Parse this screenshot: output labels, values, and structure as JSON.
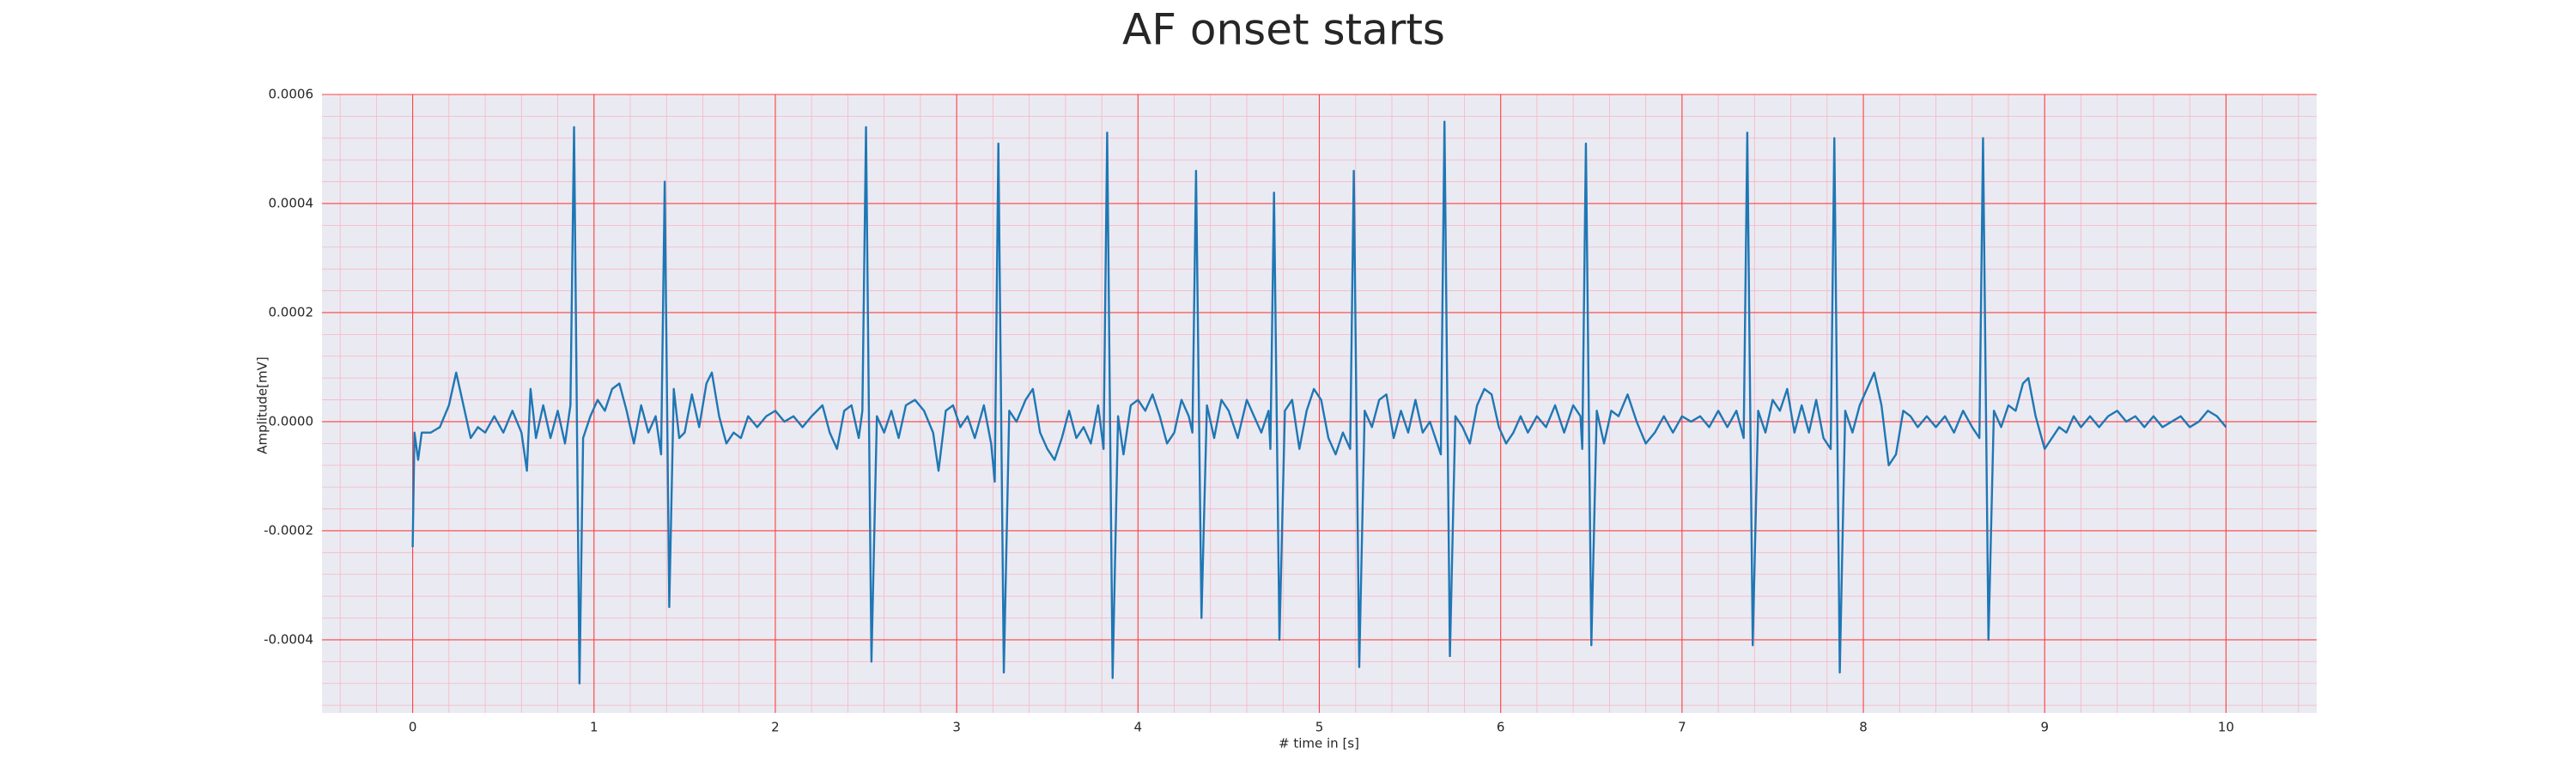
{
  "chart_data": {
    "type": "line",
    "title": "AF onset starts",
    "x_label": "# time in [s]",
    "y_label": "Amplitude[mV]",
    "color": "#1f77b4",
    "background": "#eaeaf2",
    "grid": true,
    "grid_color": "#ff4040",
    "minor_grid": true,
    "minor_grid_color": "#f7b6c2",
    "xlim": [
      -0.5,
      10.5
    ],
    "ylim": [
      -0.000534,
      0.0006
    ],
    "xticks": [
      0,
      1,
      2,
      3,
      4,
      5,
      6,
      7,
      8,
      9,
      10
    ],
    "yticks": [
      -0.0004,
      -0.0002,
      {
        "value": 0,
        "label": "0.0000"
      },
      0.0002,
      0.0004,
      0.0006
    ],
    "x": [
      0,
      0.01,
      0.03,
      0.05,
      0.1,
      0.15,
      0.2,
      0.24,
      0.28,
      0.32,
      0.36,
      0.4,
      0.45,
      0.5,
      0.55,
      0.6,
      0.63,
      0.65,
      0.68,
      0.72,
      0.76,
      0.8,
      0.84,
      0.87,
      0.89,
      0.92,
      0.94,
      0.98,
      1.02,
      1.06,
      1.1,
      1.14,
      1.18,
      1.22,
      1.26,
      1.3,
      1.34,
      1.37,
      1.39,
      1.415,
      1.44,
      1.47,
      1.5,
      1.54,
      1.58,
      1.62,
      1.65,
      1.69,
      1.73,
      1.77,
      1.81,
      1.85,
      1.9,
      1.95,
      2.0,
      2.05,
      2.1,
      2.15,
      2.2,
      2.26,
      2.3,
      2.34,
      2.38,
      2.42,
      2.46,
      2.48,
      2.5,
      2.53,
      2.56,
      2.6,
      2.64,
      2.68,
      2.72,
      2.77,
      2.82,
      2.87,
      2.9,
      2.94,
      2.98,
      3.02,
      3.06,
      3.1,
      3.15,
      3.19,
      3.21,
      3.23,
      3.26,
      3.29,
      3.33,
      3.38,
      3.42,
      3.46,
      3.5,
      3.54,
      3.58,
      3.62,
      3.66,
      3.7,
      3.74,
      3.78,
      3.81,
      3.83,
      3.86,
      3.89,
      3.92,
      3.96,
      4.0,
      4.04,
      4.08,
      4.12,
      4.16,
      4.2,
      4.24,
      4.28,
      4.3,
      4.32,
      4.35,
      4.38,
      4.42,
      4.46,
      4.5,
      4.55,
      4.6,
      4.64,
      4.68,
      4.72,
      4.73,
      4.75,
      4.78,
      4.81,
      4.85,
      4.89,
      4.93,
      4.97,
      5.01,
      5.05,
      5.09,
      5.13,
      5.17,
      5.19,
      5.22,
      5.25,
      5.29,
      5.33,
      5.37,
      5.41,
      5.45,
      5.49,
      5.53,
      5.57,
      5.61,
      5.65,
      5.67,
      5.69,
      5.72,
      5.75,
      5.79,
      5.83,
      5.87,
      5.91,
      5.95,
      5.99,
      6.03,
      6.07,
      6.11,
      6.15,
      6.2,
      6.25,
      6.3,
      6.35,
      6.4,
      6.44,
      6.45,
      6.47,
      6.5,
      6.53,
      6.57,
      6.61,
      6.65,
      6.7,
      6.75,
      6.8,
      6.85,
      6.9,
      6.95,
      7.0,
      7.05,
      7.1,
      7.15,
      7.2,
      7.25,
      7.3,
      7.34,
      7.36,
      7.39,
      7.42,
      7.46,
      7.5,
      7.54,
      7.58,
      7.62,
      7.66,
      7.7,
      7.74,
      7.78,
      7.82,
      7.84,
      7.87,
      7.9,
      7.94,
      7.98,
      8.02,
      8.06,
      8.1,
      8.14,
      8.18,
      8.22,
      8.26,
      8.3,
      8.35,
      8.4,
      8.45,
      8.5,
      8.55,
      8.6,
      8.64,
      8.66,
      8.69,
      8.72,
      8.76,
      8.8,
      8.84,
      8.88,
      8.91,
      8.95,
      9.0,
      9.04,
      9.08,
      9.12,
      9.16,
      9.2,
      9.25,
      9.3,
      9.35,
      9.4,
      9.45,
      9.5,
      9.55,
      9.6,
      9.65,
      9.7,
      9.75,
      9.8,
      9.85,
      9.9,
      9.95,
      10.0
    ],
    "values": [
      -0.00023,
      -2e-05,
      -7e-05,
      -2e-05,
      -2e-05,
      -1e-05,
      3e-05,
      9e-05,
      3e-05,
      -3e-05,
      -1e-05,
      -2e-05,
      1e-05,
      -2e-05,
      2e-05,
      -2e-05,
      -9e-05,
      6e-05,
      -3e-05,
      3e-05,
      -3e-05,
      2e-05,
      -4e-05,
      3e-05,
      0.00054,
      -0.00048,
      -3e-05,
      1e-05,
      4e-05,
      2e-05,
      6e-05,
      7e-05,
      2e-05,
      -4e-05,
      3e-05,
      -2e-05,
      1e-05,
      -6e-05,
      0.00044,
      -0.00034,
      6e-05,
      -3e-05,
      -2e-05,
      5e-05,
      -1e-05,
      7e-05,
      9e-05,
      1e-05,
      -4e-05,
      -2e-05,
      -3e-05,
      1e-05,
      -1e-05,
      1e-05,
      2e-05,
      0,
      1e-05,
      -1e-05,
      1e-05,
      3e-05,
      -2e-05,
      -5e-05,
      2e-05,
      3e-05,
      -3e-05,
      2e-05,
      0.00054,
      -0.00044,
      1e-05,
      -2e-05,
      2e-05,
      -3e-05,
      3e-05,
      4e-05,
      2e-05,
      -2e-05,
      -9e-05,
      2e-05,
      3e-05,
      -1e-05,
      1e-05,
      -3e-05,
      3e-05,
      -4e-05,
      -0.00011,
      0.00051,
      -0.00046,
      2e-05,
      0,
      4e-05,
      6e-05,
      -2e-05,
      -5e-05,
      -7e-05,
      -3e-05,
      2e-05,
      -3e-05,
      -1e-05,
      -4e-05,
      3e-05,
      -5e-05,
      0.00053,
      -0.00047,
      1e-05,
      -6e-05,
      3e-05,
      4e-05,
      2e-05,
      5e-05,
      1e-05,
      -4e-05,
      -2e-05,
      4e-05,
      1e-05,
      -2e-05,
      0.00046,
      -0.00036,
      3e-05,
      -3e-05,
      4e-05,
      2e-05,
      -3e-05,
      4e-05,
      1e-05,
      -2e-05,
      2e-05,
      -5e-05,
      0.00042,
      -0.0004,
      2e-05,
      4e-05,
      -5e-05,
      2e-05,
      6e-05,
      4e-05,
      -3e-05,
      -6e-05,
      -2e-05,
      -5e-05,
      0.00046,
      -0.00045,
      2e-05,
      -1e-05,
      4e-05,
      5e-05,
      -3e-05,
      2e-05,
      -2e-05,
      4e-05,
      -2e-05,
      0,
      -4e-05,
      -6e-05,
      0.00055,
      -0.00043,
      1e-05,
      -1e-05,
      -4e-05,
      3e-05,
      6e-05,
      5e-05,
      -1e-05,
      -4e-05,
      -2e-05,
      1e-05,
      -2e-05,
      1e-05,
      -1e-05,
      3e-05,
      -2e-05,
      3e-05,
      1e-05,
      -5e-05,
      0.00051,
      -0.00041,
      2e-05,
      -4e-05,
      2e-05,
      1e-05,
      5e-05,
      0,
      -4e-05,
      -2e-05,
      1e-05,
      -2e-05,
      1e-05,
      0,
      1e-05,
      -1e-05,
      2e-05,
      -1e-05,
      2e-05,
      -3e-05,
      0.00053,
      -0.00041,
      2e-05,
      -2e-05,
      4e-05,
      2e-05,
      6e-05,
      -2e-05,
      3e-05,
      -2e-05,
      4e-05,
      -3e-05,
      -5e-05,
      0.00052,
      -0.00046,
      2e-05,
      -2e-05,
      3e-05,
      6e-05,
      9e-05,
      3e-05,
      -8e-05,
      -6e-05,
      2e-05,
      1e-05,
      -1e-05,
      1e-05,
      -1e-05,
      1e-05,
      -2e-05,
      2e-05,
      -1e-05,
      -3e-05,
      0.00052,
      -0.0004,
      2e-05,
      -1e-05,
      3e-05,
      2e-05,
      7e-05,
      8e-05,
      1e-05,
      -5e-05,
      -3e-05,
      -1e-05,
      -2e-05,
      1e-05,
      -1e-05,
      1e-05,
      -1e-05,
      1e-05,
      2e-05,
      0,
      1e-05,
      -1e-05,
      1e-05,
      -1e-05,
      0,
      1e-05,
      -1e-05,
      0,
      2e-05,
      1e-05,
      -1e-05
    ]
  }
}
